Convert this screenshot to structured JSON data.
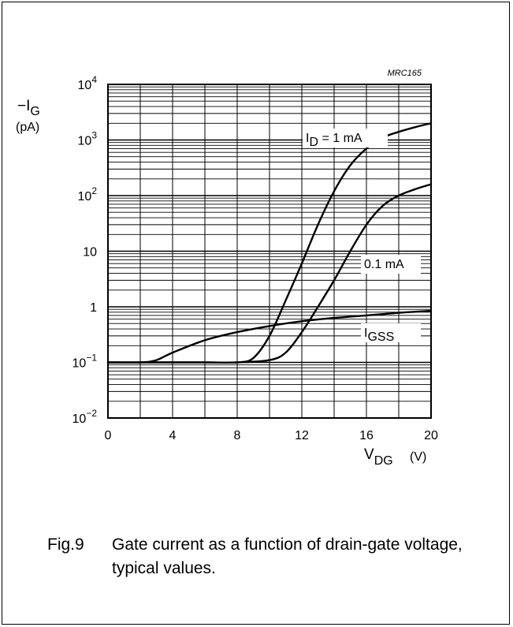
{
  "figure_code": "MRC165",
  "caption": {
    "number": "Fig.9",
    "text": "Gate current as a function of drain-gate voltage, typical values."
  },
  "chart_data": {
    "type": "line",
    "title": "",
    "ylabel": {
      "main": "−I",
      "sub": "G",
      "unit": "(pA)"
    },
    "xlabel": {
      "main": "V",
      "sub": "DG",
      "unit": "(V)"
    },
    "xlim": [
      0,
      20
    ],
    "ylim": [
      0.01,
      10000
    ],
    "yscale": "log",
    "grid": true,
    "x_ticks": [
      "0",
      "4",
      "8",
      "12",
      "16",
      "20"
    ],
    "y_ticks": [
      {
        "base": "10",
        "exp": "−2"
      },
      {
        "base": "10",
        "exp": "−1"
      },
      {
        "base": "1",
        "exp": ""
      },
      {
        "base": "10",
        "exp": ""
      },
      {
        "base": "10",
        "exp": "2"
      },
      {
        "base": "10",
        "exp": "3"
      },
      {
        "base": "10",
        "exp": "4"
      }
    ],
    "series": [
      {
        "name": "I_D = 1 mA",
        "label": {
          "main": "I",
          "sub": "D",
          "rest": " = 1 mA"
        },
        "x": [
          0,
          2,
          4,
          6,
          8,
          9,
          10,
          11,
          12,
          13,
          14,
          15,
          16,
          17,
          18,
          19,
          20
        ],
        "y": [
          0.1,
          0.1,
          0.1,
          0.1,
          0.1,
          0.12,
          0.3,
          1.3,
          6,
          30,
          120,
          350,
          700,
          1100,
          1400,
          1700,
          2000
        ]
      },
      {
        "name": "0.1 mA",
        "label": {
          "main": "0.1 mA",
          "sub": "",
          "rest": ""
        },
        "x": [
          0,
          2,
          4,
          6,
          8,
          10,
          11,
          12,
          13,
          14,
          15,
          16,
          17,
          18,
          19,
          20
        ],
        "y": [
          0.1,
          0.1,
          0.1,
          0.1,
          0.1,
          0.11,
          0.15,
          0.35,
          1,
          3,
          10,
          30,
          65,
          100,
          130,
          160
        ]
      },
      {
        "name": "I_GSS",
        "label": {
          "main": "I",
          "sub": "GSS",
          "rest": ""
        },
        "x": [
          0,
          2,
          3,
          4,
          6,
          8,
          10,
          12,
          14,
          16,
          18,
          20
        ],
        "y": [
          0.1,
          0.1,
          0.11,
          0.15,
          0.25,
          0.35,
          0.45,
          0.55,
          0.63,
          0.7,
          0.78,
          0.85
        ]
      }
    ]
  }
}
